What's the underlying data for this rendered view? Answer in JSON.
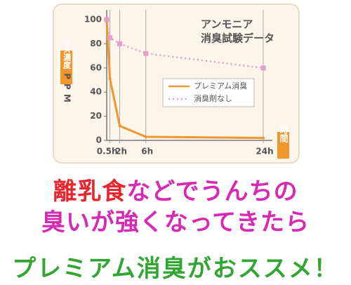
{
  "chart_data": {
    "type": "line",
    "title_lines": [
      "アンモニア",
      "消臭試験データ"
    ],
    "y_label": "ガス濃度",
    "y_unit": "PPM",
    "x_label": "時間",
    "x": [
      0,
      0.5,
      2,
      6,
      24
    ],
    "series": [
      {
        "name": "プレミアム消臭",
        "color": "#f0962d",
        "dash": false,
        "values": [
          100,
          51,
          12,
          3,
          2
        ]
      },
      {
        "name": "消臭剤なし",
        "color": "#e79ccf",
        "dash": true,
        "values": [
          100,
          85,
          80,
          72,
          60
        ]
      }
    ],
    "xlim": [
      0,
      24
    ],
    "ylim": [
      0,
      100
    ],
    "xticks": [
      {
        "value": 0.5,
        "label": "0.5h"
      },
      {
        "value": 2,
        "label": "2h"
      },
      {
        "value": 6,
        "label": "6h"
      },
      {
        "value": 24,
        "label": "24h"
      }
    ],
    "yticks": [
      0,
      20,
      40,
      60,
      80,
      100
    ]
  },
  "headline": [
    [
      {
        "text": "離乳食",
        "color": "#e8262f"
      },
      {
        "text": "などでうんちの",
        "color": "#d62ab4"
      }
    ],
    [
      {
        "text": "臭いが強くなってきたら",
        "color": "#d62ab4"
      }
    ],
    [
      {
        "text": "プレミアム消臭がおススメ！",
        "color": "#33a532"
      }
    ]
  ]
}
